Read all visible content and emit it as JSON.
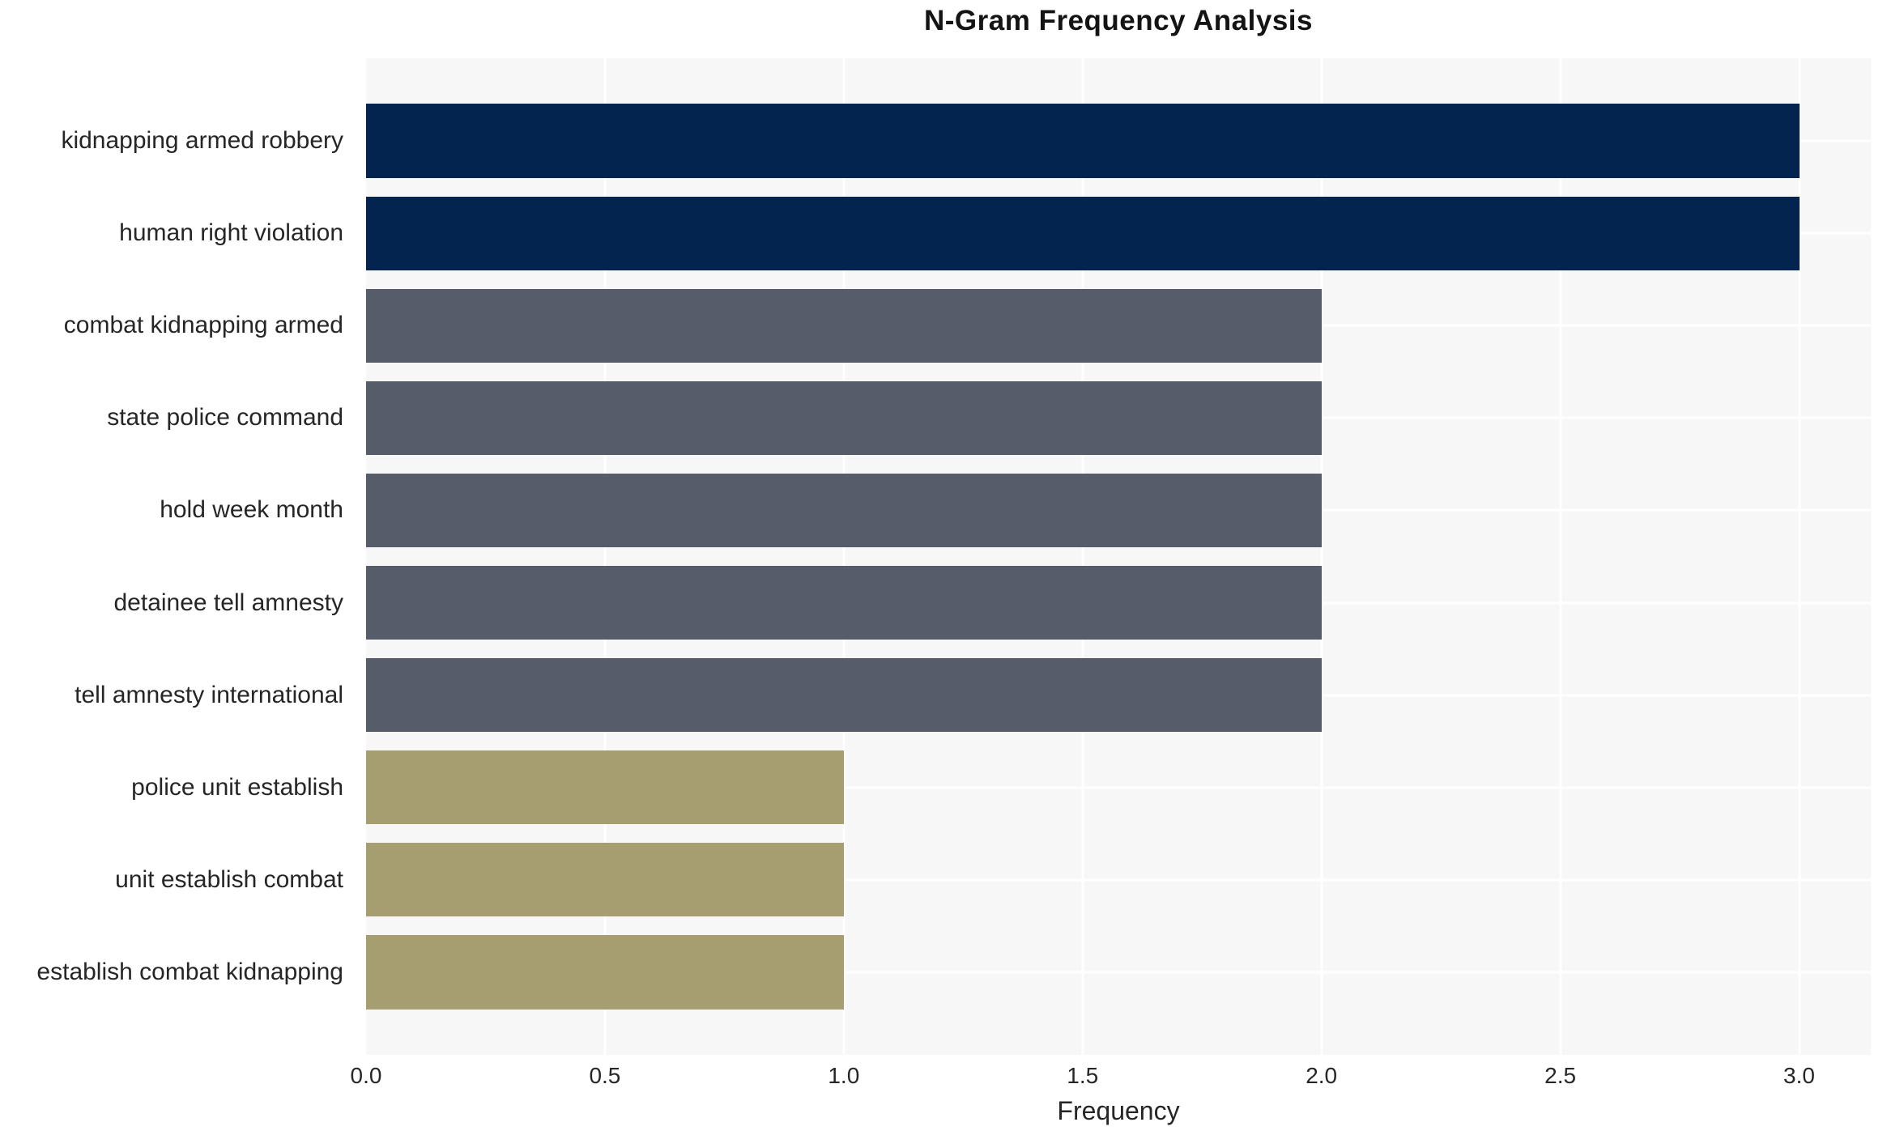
{
  "chart_data": {
    "type": "bar",
    "orientation": "horizontal",
    "title": "N-Gram Frequency Analysis",
    "xlabel": "Frequency",
    "ylabel": "",
    "categories": [
      "kidnapping armed robbery",
      "human right violation",
      "combat kidnapping armed",
      "state police command",
      "hold week month",
      "detainee tell amnesty",
      "tell amnesty international",
      "police unit establish",
      "unit establish combat",
      "establish combat kidnapping"
    ],
    "values": [
      3,
      3,
      2,
      2,
      2,
      2,
      2,
      1,
      1,
      1
    ],
    "bar_colors": [
      "#02244e",
      "#02244e",
      "#565c6a",
      "#565c6a",
      "#565c6a",
      "#565c6a",
      "#565c6a",
      "#a69e71",
      "#a69e71",
      "#a69e71"
    ],
    "xtick_labels": [
      "0.0",
      "0.5",
      "1.0",
      "1.5",
      "2.0",
      "2.5",
      "3.0"
    ],
    "xtick_values": [
      0,
      0.5,
      1,
      1.5,
      2,
      2.5,
      3
    ],
    "xlim": [
      0,
      3.15
    ],
    "grid": true,
    "legend_position": "none",
    "colors": {
      "freq_3": "#02244e",
      "freq_2": "#565c6a",
      "freq_1": "#a69e71",
      "plot_background": "#f7f7f8",
      "grid_line": "#ffffff",
      "text": "#262626",
      "title_text": "#141414",
      "page_background": "#ffffff"
    }
  }
}
